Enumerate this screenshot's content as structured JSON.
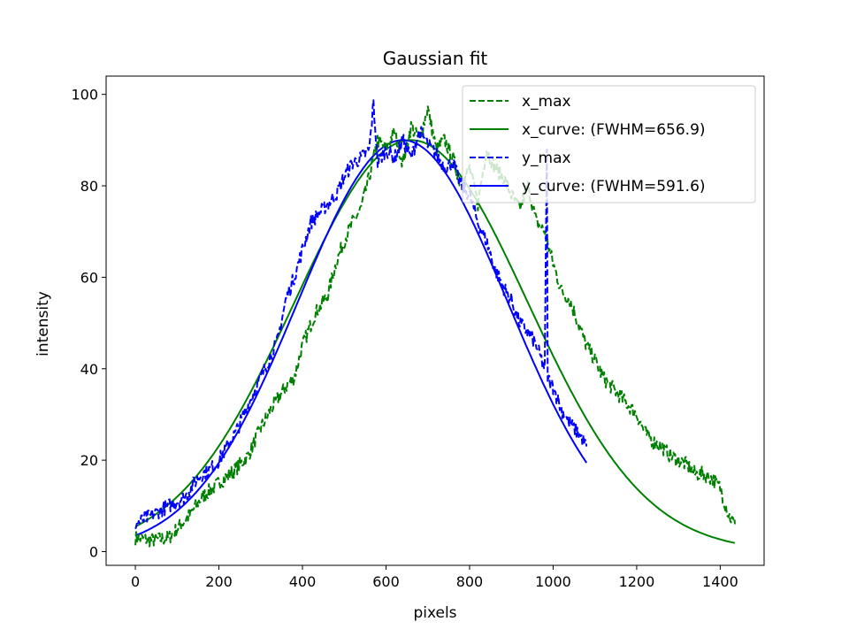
{
  "chart_data": {
    "type": "line",
    "title": "Gaussian fit",
    "xlabel": "pixels",
    "ylabel": "intensity",
    "xlim": [
      -70,
      1505
    ],
    "ylim": [
      -3,
      104
    ],
    "x_ticks": [
      0,
      200,
      400,
      600,
      800,
      1000,
      1200,
      1400
    ],
    "y_ticks": [
      0,
      20,
      40,
      60,
      80,
      100
    ],
    "grid": false,
    "legend_position": "top-right",
    "colors": {
      "x": "#008000",
      "y": "#0000ff"
    },
    "series": [
      {
        "name": "x_max",
        "style": "dashed",
        "color": "#008000",
        "points": [
          [
            0,
            3
          ],
          [
            40,
            2.5
          ],
          [
            80,
            3
          ],
          [
            100,
            5
          ],
          [
            130,
            8
          ],
          [
            160,
            12
          ],
          [
            200,
            15
          ],
          [
            240,
            18
          ],
          [
            270,
            21
          ],
          [
            300,
            27
          ],
          [
            330,
            32
          ],
          [
            360,
            36
          ],
          [
            380,
            38
          ],
          [
            400,
            45
          ],
          [
            430,
            52
          ],
          [
            460,
            56
          ],
          [
            480,
            63
          ],
          [
            500,
            68
          ],
          [
            520,
            72
          ],
          [
            540,
            75
          ],
          [
            560,
            82
          ],
          [
            580,
            90
          ],
          [
            600,
            88
          ],
          [
            620,
            92
          ],
          [
            640,
            85
          ],
          [
            660,
            93
          ],
          [
            680,
            90
          ],
          [
            700,
            97
          ],
          [
            720,
            88
          ],
          [
            740,
            90
          ],
          [
            760,
            86
          ],
          [
            780,
            80
          ],
          [
            800,
            84
          ],
          [
            820,
            76
          ],
          [
            840,
            88
          ],
          [
            860,
            84
          ],
          [
            880,
            82
          ],
          [
            900,
            78
          ],
          [
            920,
            75
          ],
          [
            940,
            80
          ],
          [
            960,
            72
          ],
          [
            980,
            70
          ],
          [
            1000,
            63
          ],
          [
            1020,
            57
          ],
          [
            1040,
            55
          ],
          [
            1060,
            50
          ],
          [
            1080,
            45
          ],
          [
            1100,
            42
          ],
          [
            1120,
            38
          ],
          [
            1140,
            36
          ],
          [
            1160,
            34
          ],
          [
            1180,
            32
          ],
          [
            1200,
            30
          ],
          [
            1220,
            26
          ],
          [
            1240,
            24
          ],
          [
            1260,
            23
          ],
          [
            1280,
            21
          ],
          [
            1300,
            20
          ],
          [
            1320,
            19
          ],
          [
            1340,
            17
          ],
          [
            1360,
            17
          ],
          [
            1380,
            16
          ],
          [
            1400,
            14
          ],
          [
            1420,
            8
          ],
          [
            1435,
            6
          ]
        ]
      },
      {
        "name": "x_curve: (FWHM=656.9)",
        "style": "solid",
        "color": "#008000",
        "gaussian": {
          "amplitude": 90,
          "center": 660,
          "fwhm": 656.9,
          "x_start": 0,
          "x_end": 1435
        }
      },
      {
        "name": "y_max",
        "style": "dashed",
        "color": "#0000ff",
        "points": [
          [
            0,
            6
          ],
          [
            40,
            8
          ],
          [
            80,
            10
          ],
          [
            120,
            12
          ],
          [
            140,
            15
          ],
          [
            160,
            17
          ],
          [
            180,
            18
          ],
          [
            200,
            20
          ],
          [
            220,
            23
          ],
          [
            240,
            26
          ],
          [
            260,
            30
          ],
          [
            280,
            34
          ],
          [
            300,
            38
          ],
          [
            320,
            42
          ],
          [
            340,
            46
          ],
          [
            360,
            55
          ],
          [
            380,
            60
          ],
          [
            400,
            66
          ],
          [
            420,
            72
          ],
          [
            440,
            74
          ],
          [
            460,
            76
          ],
          [
            480,
            78
          ],
          [
            500,
            82
          ],
          [
            520,
            85
          ],
          [
            540,
            86
          ],
          [
            560,
            88
          ],
          [
            570,
            98
          ],
          [
            580,
            85
          ],
          [
            600,
            88
          ],
          [
            620,
            86
          ],
          [
            640,
            90
          ],
          [
            660,
            86
          ],
          [
            680,
            92
          ],
          [
            700,
            89
          ],
          [
            720,
            87
          ],
          [
            740,
            84
          ],
          [
            760,
            85
          ],
          [
            780,
            80
          ],
          [
            800,
            78
          ],
          [
            820,
            72
          ],
          [
            840,
            68
          ],
          [
            860,
            62
          ],
          [
            880,
            58
          ],
          [
            900,
            55
          ],
          [
            920,
            50
          ],
          [
            940,
            48
          ],
          [
            960,
            45
          ],
          [
            980,
            40
          ],
          [
            985,
            88
          ],
          [
            987,
            38
          ],
          [
            1000,
            36
          ],
          [
            1020,
            31
          ],
          [
            1040,
            28
          ],
          [
            1060,
            26
          ],
          [
            1080,
            23
          ]
        ]
      },
      {
        "name": "y_curve: (FWHM=591.6)",
        "style": "solid",
        "color": "#0000ff",
        "gaussian": {
          "amplitude": 90,
          "center": 640,
          "fwhm": 591.6,
          "x_start": 0,
          "x_end": 1080
        }
      }
    ]
  }
}
